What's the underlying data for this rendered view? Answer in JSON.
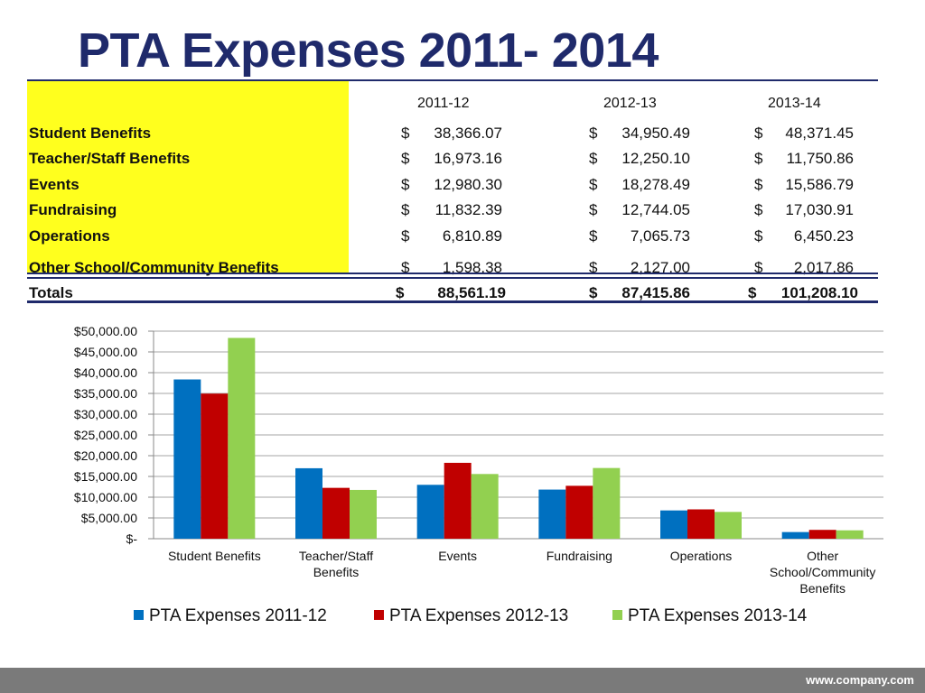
{
  "title": "PTA Expenses 2011- 2014",
  "table": {
    "columns": [
      "2011-12",
      "2012-13",
      "2013-14"
    ],
    "rows": [
      {
        "label": "Student Benefits",
        "values": [
          "38,366.07",
          "34,950.49",
          "48,371.45"
        ]
      },
      {
        "label": "Teacher/Staff Benefits",
        "values": [
          "16,973.16",
          "12,250.10",
          "11,750.86"
        ]
      },
      {
        "label": "Events",
        "values": [
          "12,980.30",
          "18,278.49",
          "15,586.79"
        ]
      },
      {
        "label": "Fundraising",
        "values": [
          "11,832.39",
          "12,744.05",
          "17,030.91"
        ]
      },
      {
        "label": "Operations",
        "values": [
          "6,810.89",
          "7,065.73",
          "6,450.23"
        ]
      },
      {
        "label": "Other School/Community Benefits",
        "values": [
          "1,598.38",
          "2,127.00",
          "2,017.86"
        ]
      }
    ],
    "totals": {
      "label": "Totals",
      "values": [
        "88,561.19",
        "87,415.86",
        "101,208.10"
      ]
    },
    "currency_symbol": "$"
  },
  "chart_data": {
    "type": "bar",
    "categories": [
      "Student Benefits",
      "Teacher/Staff Benefits",
      "Events",
      "Fundraising",
      "Operations",
      "Other School/Community Benefits"
    ],
    "series": [
      {
        "name": "PTA Expenses 2011-12",
        "color": "#0070c0",
        "values": [
          38366.07,
          16973.16,
          12980.3,
          11832.39,
          6810.89,
          1598.38
        ]
      },
      {
        "name": "PTA Expenses 2012-13",
        "color": "#c00000",
        "values": [
          34950.49,
          12250.1,
          18278.49,
          12744.05,
          7065.73,
          2127.0
        ]
      },
      {
        "name": "PTA Expenses 2013-14",
        "color": "#92d050",
        "values": [
          48371.45,
          11750.86,
          15586.79,
          17030.91,
          6450.23,
          2017.86
        ]
      }
    ],
    "ylim": [
      0,
      50000
    ],
    "y_ticks": [
      "$-",
      "$5,000.00",
      "$10,000.00",
      "$15,000.00",
      "$20,000.00",
      "$25,000.00",
      "$30,000.00",
      "$35,000.00",
      "$40,000.00",
      "$45,000.00",
      "$50,000.00"
    ],
    "grid": true,
    "legend_position": "bottom"
  },
  "footer": {
    "url": "www.company.com"
  },
  "colors": {
    "title": "#1f2a6b",
    "highlight": "#ffff1e",
    "footer": "#7a7a7a"
  }
}
